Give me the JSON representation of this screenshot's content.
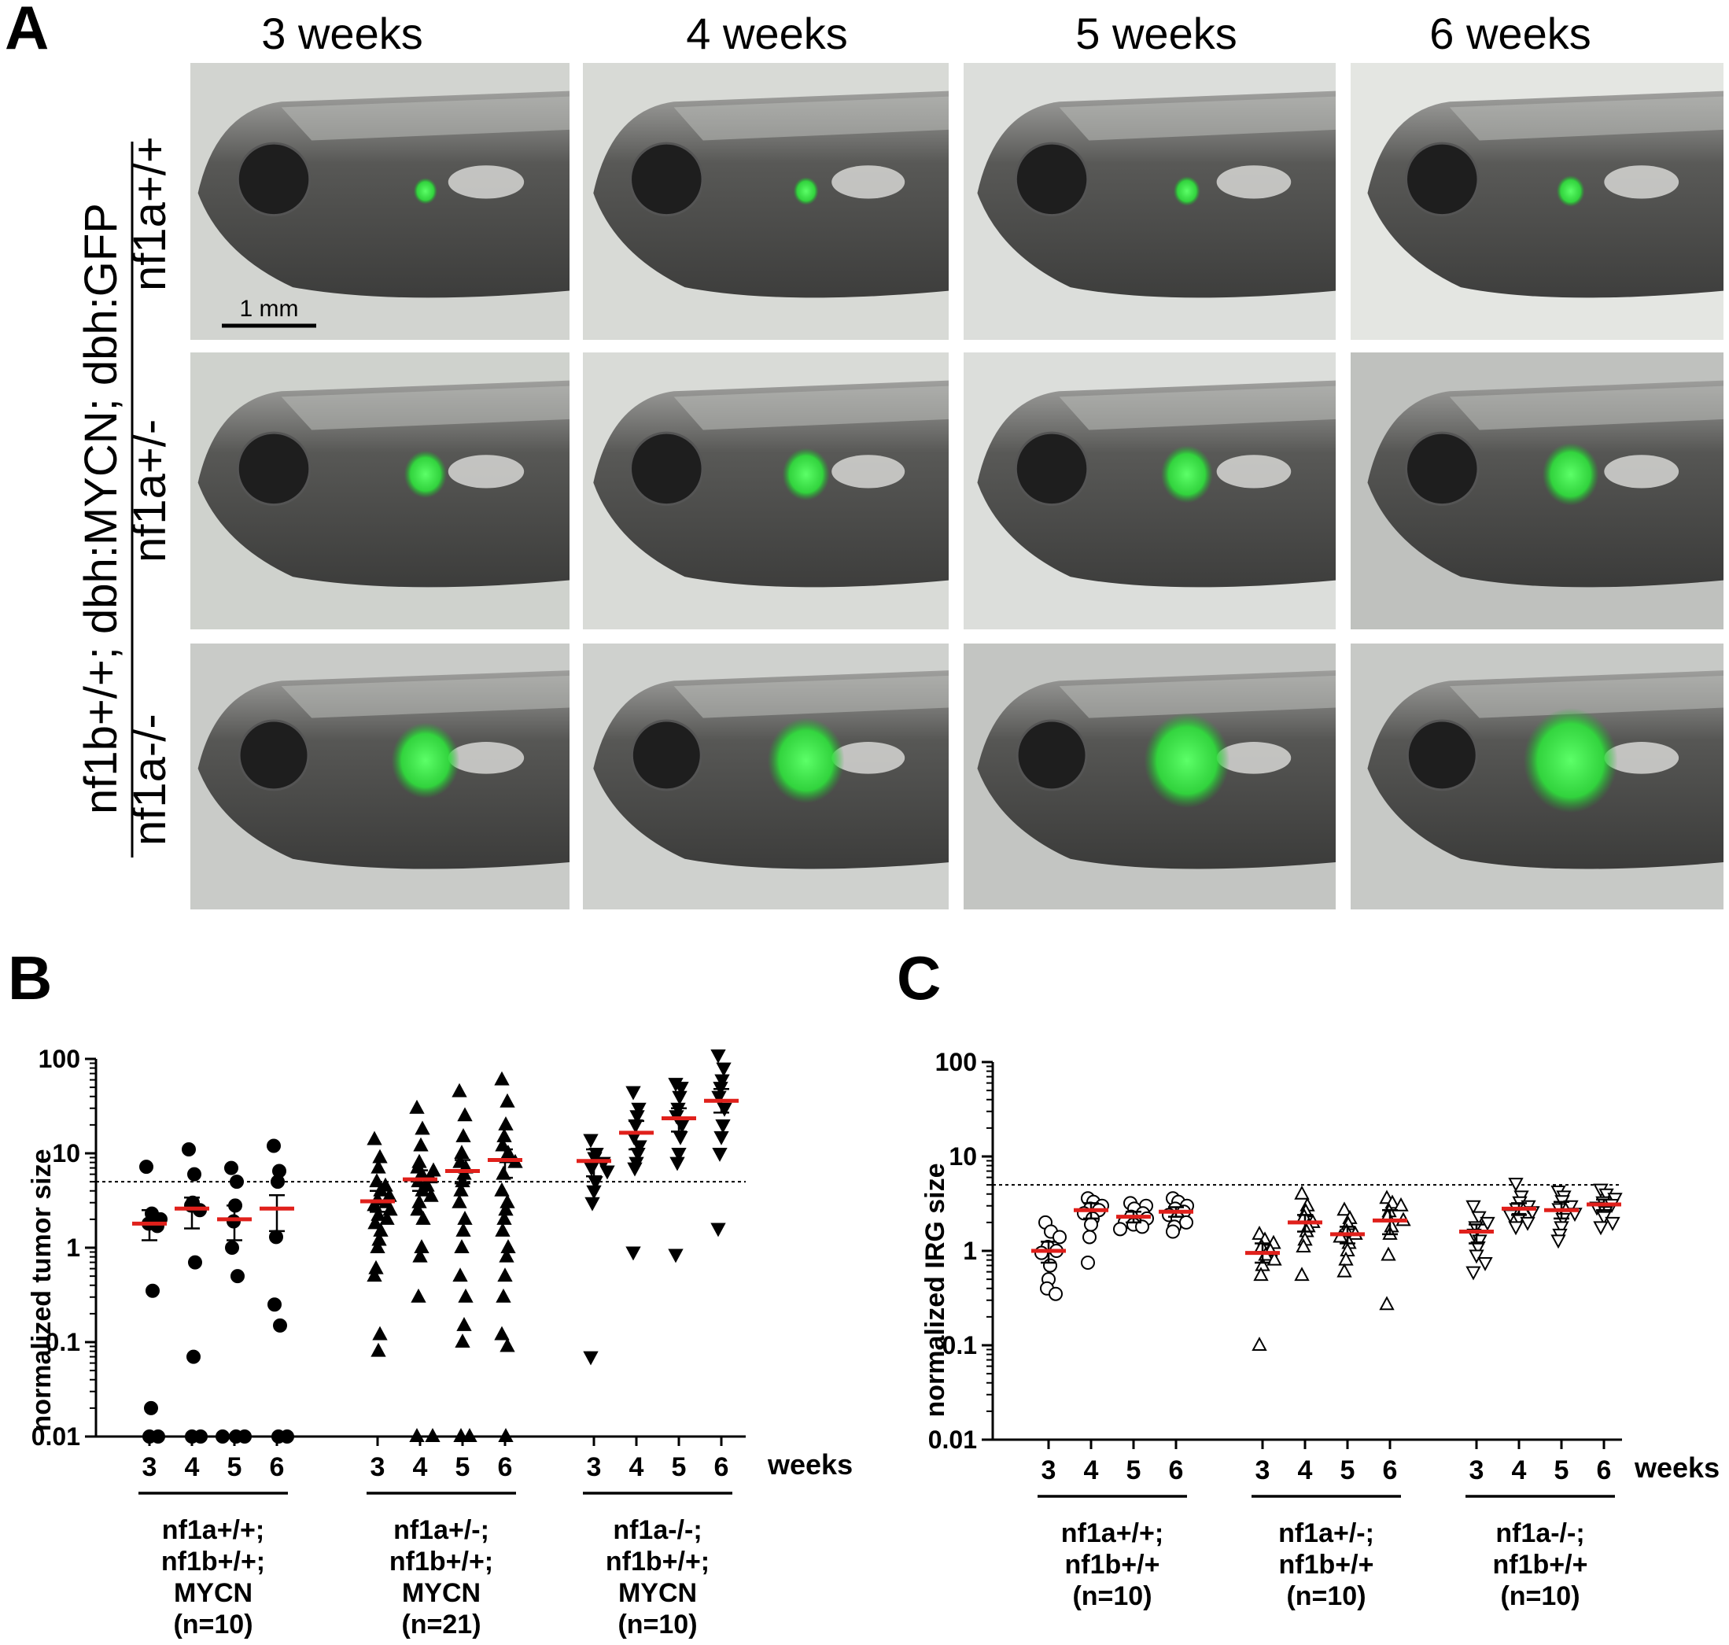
{
  "panel_a": {
    "letter": "A",
    "columns": [
      "3 weeks",
      "4 weeks",
      "5 weeks",
      "6 weeks"
    ],
    "row_labels": [
      "nf1a+/+",
      "nf1a+/-",
      "nf1a-/-"
    ],
    "side_label": "nf1b+/+; dbh:MYCN; dbh:GFP",
    "scale_bar": "1 mm",
    "colors": {
      "background": "#cdd0cc",
      "fish": "#3a3a3a",
      "gfp": "#3ef04a"
    },
    "gfp_level_by_row": [
      0.15,
      0.45,
      0.85
    ]
  },
  "chart_data": [
    {
      "panel": "B",
      "type": "scatter",
      "ylabel": "normalized tumor size",
      "yscale": "log",
      "ylim": [
        0.01,
        100
      ],
      "yticks": [
        "100",
        "10",
        "1",
        "0.1",
        "0.01"
      ],
      "threshold": 5,
      "x_unit": "weeks",
      "x_ticks": [
        "3",
        "4",
        "5",
        "6"
      ],
      "groups": [
        {
          "label": [
            "nf1a+/+;",
            "nf1b+/+;",
            "MYCN",
            "(n=10)"
          ],
          "marker": "circle-filled",
          "weeks": [
            {
              "week": "3",
              "mean": 1.8,
              "err": [
                1.2,
                2.5
              ],
              "points": [
                7.2,
                2.3,
                2.0,
                1.8,
                1.7,
                0.35,
                0.02,
                0.01,
                0.01
              ]
            },
            {
              "week": "4",
              "mean": 2.6,
              "err": [
                1.6,
                3.4
              ],
              "points": [
                11,
                6.0,
                3.0,
                2.8,
                2.5,
                0.7,
                0.07,
                0.01,
                0.01
              ]
            },
            {
              "week": "5",
              "mean": 2.0,
              "err": [
                1.2,
                2.8
              ],
              "points": [
                7.0,
                5.0,
                2.8,
                1.9,
                1.0,
                0.5,
                0.01,
                0.01,
                0.01
              ]
            },
            {
              "week": "6",
              "mean": 2.6,
              "err": [
                1.5,
                3.6
              ],
              "points": [
                12,
                6.5,
                5.0,
                1.3,
                0.25,
                0.15,
                0.01,
                0.01
              ]
            }
          ]
        },
        {
          "label": [
            "nf1a+/-;",
            "nf1b+/+;",
            "MYCN",
            "(n=21)"
          ],
          "marker": "triangle-up-filled",
          "weeks": [
            {
              "week": "3",
              "mean": 3.1,
              "err": [
                2.4,
                4.0
              ],
              "points": [
                14,
                9,
                7,
                5,
                4.5,
                4,
                3.5,
                3.2,
                3,
                2.8,
                2.5,
                2.2,
                2,
                1.8,
                1.5,
                1.2,
                1,
                0.6,
                0.5,
                0.12,
                0.08
              ]
            },
            {
              "week": "4",
              "mean": 5.3,
              "err": [
                4.0,
                6.6
              ],
              "points": [
                30,
                18,
                12,
                8,
                7,
                6.5,
                6,
                5.5,
                5,
                4.5,
                4,
                3.5,
                3,
                2.5,
                2,
                1,
                0.8,
                0.3,
                0.01,
                0.01
              ]
            },
            {
              "week": "5",
              "mean": 6.5,
              "err": [
                4.8,
                8.5
              ],
              "points": [
                45,
                25,
                15,
                10,
                8,
                7,
                6,
                5,
                4,
                3,
                2,
                1.5,
                1,
                0.5,
                0.3,
                0.15,
                0.1,
                0.01,
                0.01
              ]
            },
            {
              "week": "6",
              "mean": 8.5,
              "err": [
                5.5,
                11
              ],
              "points": [
                60,
                35,
                20,
                15,
                12,
                10,
                9,
                8,
                6,
                4,
                3,
                2.5,
                2,
                1.5,
                1,
                0.8,
                0.5,
                0.3,
                0.12,
                0.09,
                0.01
              ]
            }
          ]
        },
        {
          "label": [
            "nf1a-/-;",
            "nf1b+/+;",
            "MYCN",
            "(n=10)"
          ],
          "marker": "triangle-down-filled",
          "weeks": [
            {
              "week": "3",
              "mean": 8.3,
              "err": [
                5.7,
                11
              ],
              "points": [
                14,
                10,
                9,
                8,
                7,
                6.5,
                5,
                4,
                3,
                0.07
              ]
            },
            {
              "week": "4",
              "mean": 16.5,
              "err": [
                11,
                22
              ],
              "points": [
                45,
                30,
                25,
                20,
                15,
                12,
                10,
                8,
                7,
                0.9
              ]
            },
            {
              "week": "5",
              "mean": 23.5,
              "err": [
                17,
                30
              ],
              "points": [
                55,
                50,
                40,
                30,
                25,
                20,
                15,
                10,
                8,
                0.85
              ]
            },
            {
              "week": "6",
              "mean": 36,
              "err": [
                27,
                48
              ],
              "points": [
                110,
                80,
                60,
                50,
                40,
                30,
                20,
                15,
                10,
                1.6
              ]
            }
          ]
        }
      ]
    },
    {
      "panel": "C",
      "type": "scatter",
      "ylabel": "normalized IRG size",
      "yscale": "log",
      "ylim": [
        0.01,
        100
      ],
      "yticks": [
        "100",
        "10",
        "1",
        "0.1",
        "0.01"
      ],
      "threshold": 5,
      "x_unit": "weeks",
      "x_ticks": [
        "3",
        "4",
        "5",
        "6"
      ],
      "groups": [
        {
          "label": [
            "nf1a+/+;",
            "nf1b+/+",
            "(n=10)"
          ],
          "marker": "circle-open",
          "weeks": [
            {
              "week": "3",
              "mean": 1.0,
              "err": [
                0.75,
                1.25
              ],
              "points": [
                2.0,
                1.6,
                1.4,
                1.1,
                1.0,
                0.95,
                0.7,
                0.5,
                0.4,
                0.35
              ]
            },
            {
              "week": "4",
              "mean": 2.7,
              "err": [
                2.2,
                3.2
              ],
              "points": [
                3.6,
                3.3,
                3.0,
                2.8,
                2.7,
                2.5,
                2.2,
                1.9,
                1.4,
                0.75
              ]
            },
            {
              "week": "5",
              "mean": 2.3,
              "err": [
                2.0,
                2.6
              ],
              "points": [
                3.2,
                3.0,
                2.8,
                2.5,
                2.3,
                2.2,
                2.0,
                1.9,
                1.8,
                1.7
              ]
            },
            {
              "week": "6",
              "mean": 2.6,
              "err": [
                2.3,
                2.9
              ],
              "points": [
                3.6,
                3.3,
                3.0,
                2.8,
                2.6,
                2.4,
                2.2,
                2.0,
                1.8,
                1.6
              ]
            }
          ]
        },
        {
          "label": [
            "nf1a+/-;",
            "nf1b+/+",
            "(n=10)"
          ],
          "marker": "triangle-up-open",
          "weeks": [
            {
              "week": "3",
              "mean": 0.95,
              "err": [
                0.75,
                1.2
              ],
              "points": [
                1.5,
                1.3,
                1.2,
                1.1,
                1.0,
                0.9,
                0.8,
                0.7,
                0.55,
                0.1
              ]
            },
            {
              "week": "4",
              "mean": 2.0,
              "err": [
                1.6,
                2.4
              ],
              "points": [
                4.0,
                3.0,
                2.6,
                2.3,
                2.0,
                1.8,
                1.6,
                1.3,
                1.1,
                0.55
              ]
            },
            {
              "week": "5",
              "mean": 1.5,
              "err": [
                1.2,
                1.8
              ],
              "points": [
                2.7,
                2.2,
                1.9,
                1.6,
                1.5,
                1.4,
                1.2,
                1.0,
                0.8,
                0.6
              ]
            },
            {
              "week": "6",
              "mean": 2.1,
              "err": [
                1.5,
                2.7
              ],
              "points": [
                3.6,
                3.2,
                3.0,
                2.6,
                2.3,
                2.1,
                1.8,
                1.5,
                0.9,
                0.27
              ]
            }
          ]
        },
        {
          "label": [
            "nf1a-/-;",
            "nf1b+/+",
            "(n=10)"
          ],
          "marker": "triangle-down-open",
          "weeks": [
            {
              "week": "3",
              "mean": 1.6,
              "err": [
                1.2,
                1.9
              ],
              "points": [
                3.0,
                2.3,
                2.0,
                1.8,
                1.5,
                1.3,
                1.1,
                0.9,
                0.75,
                0.6
              ]
            },
            {
              "week": "4",
              "mean": 2.8,
              "err": [
                2.4,
                3.2
              ],
              "points": [
                5.2,
                3.8,
                3.3,
                3.0,
                2.8,
                2.6,
                2.4,
                2.2,
                2.0,
                1.8
              ]
            },
            {
              "week": "5",
              "mean": 2.7,
              "err": [
                2.2,
                3.3
              ],
              "points": [
                4.3,
                3.8,
                3.4,
                3.0,
                2.8,
                2.5,
                2.2,
                1.8,
                1.5,
                1.3
              ]
            },
            {
              "week": "6",
              "mean": 3.1,
              "err": [
                2.7,
                3.5
              ],
              "points": [
                4.5,
                4.0,
                3.6,
                3.3,
                3.1,
                2.9,
                2.6,
                2.3,
                2.0,
                1.8
              ]
            }
          ]
        }
      ]
    }
  ]
}
